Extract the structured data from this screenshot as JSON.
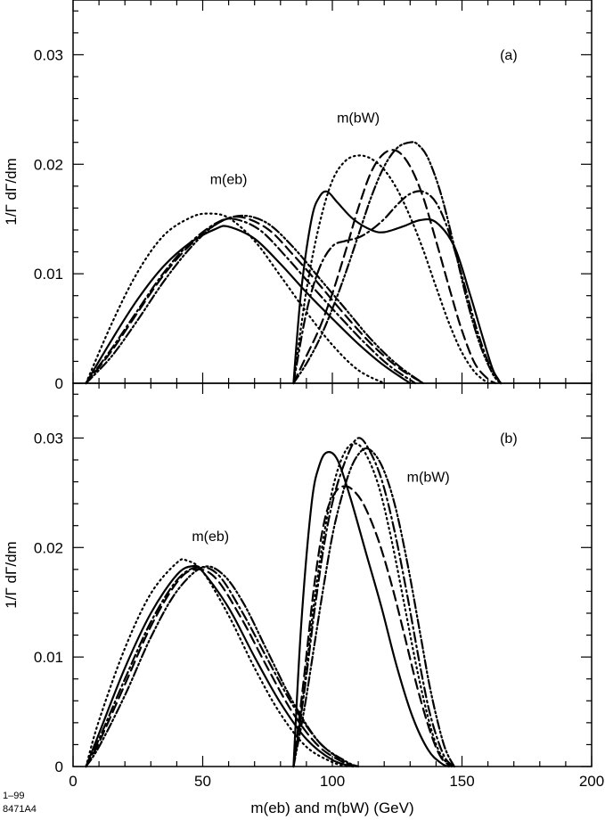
{
  "figure_code": [
    "1–99",
    "8471A4"
  ],
  "chart_data": [
    {
      "type": "line",
      "panel_label": "(a)",
      "ylabel": "1/Γ dΓ/dm",
      "xlabel": "m(eb) and m(bW)  (GeV)",
      "xlim": [
        0,
        200
      ],
      "ylim": [
        0,
        0.035
      ],
      "yticks": [
        0,
        0.01,
        0.02,
        0.03
      ],
      "ytick_labels": [
        "0",
        "0.01",
        "0.02",
        "0.03"
      ],
      "annotations": [
        {
          "text": "m(eb)",
          "x": 60,
          "y": 0.0182
        },
        {
          "text": "m(bW)",
          "x": 110,
          "y": 0.0238
        }
      ],
      "series": [
        {
          "name": "m(eb) solid",
          "style": "solid",
          "x": [
            5,
            15,
            25,
            35,
            45,
            55,
            60,
            70,
            80,
            90,
            100,
            110,
            120,
            130
          ],
          "values": [
            0,
            0.004,
            0.0077,
            0.0107,
            0.0128,
            0.0141,
            0.0143,
            0.0132,
            0.0109,
            0.0083,
            0.0059,
            0.0036,
            0.0016,
            0
          ]
        },
        {
          "name": "m(eb) dotted",
          "style": "dotted",
          "x": [
            5,
            15,
            25,
            35,
            45,
            52,
            60,
            70,
            80,
            90,
            100,
            110,
            120
          ],
          "values": [
            0,
            0.0055,
            0.0102,
            0.0135,
            0.0151,
            0.0155,
            0.0151,
            0.013,
            0.0098,
            0.0065,
            0.0035,
            0.0012,
            0
          ]
        },
        {
          "name": "m(eb) dashed",
          "style": "dashed",
          "x": [
            5,
            15,
            25,
            35,
            45,
            55,
            64,
            75,
            85,
            95,
            105,
            115,
            125,
            135
          ],
          "values": [
            0,
            0.003,
            0.0065,
            0.0099,
            0.0126,
            0.0145,
            0.0152,
            0.0141,
            0.0117,
            0.009,
            0.0062,
            0.0036,
            0.0015,
            0
          ]
        },
        {
          "name": "m(eb) dash-dot",
          "style": "dashdot",
          "x": [
            5,
            15,
            25,
            35,
            45,
            55,
            62,
            72,
            82,
            92,
            102,
            112,
            122,
            132
          ],
          "values": [
            0,
            0.0032,
            0.0067,
            0.0101,
            0.0128,
            0.0146,
            0.015,
            0.014,
            0.0116,
            0.0089,
            0.0063,
            0.0038,
            0.0016,
            0
          ]
        },
        {
          "name": "m(eb) dash-dot-dot",
          "style": "dashdotdot",
          "x": [
            5,
            15,
            25,
            35,
            45,
            55,
            65,
            75,
            85,
            95,
            105,
            115,
            125,
            135
          ],
          "values": [
            0,
            0.0025,
            0.0058,
            0.0093,
            0.0123,
            0.0145,
            0.0153,
            0.0146,
            0.0124,
            0.0096,
            0.0068,
            0.004,
            0.0017,
            0
          ]
        },
        {
          "name": "m(bW) solid",
          "style": "solid",
          "x": [
            85,
            88,
            92,
            95,
            98,
            102,
            108,
            115,
            120,
            127,
            134,
            140,
            147,
            153,
            158,
            162,
            165
          ],
          "values": [
            0,
            0.0085,
            0.015,
            0.017,
            0.0175,
            0.0165,
            0.015,
            0.014,
            0.0138,
            0.0143,
            0.0149,
            0.0147,
            0.0125,
            0.0082,
            0.0042,
            0.0012,
            0
          ]
        },
        {
          "name": "m(bW) dotted",
          "style": "dotted",
          "x": [
            85,
            90,
            95,
            100,
            105,
            110,
            115,
            120,
            125,
            130,
            135,
            140,
            145,
            150,
            155,
            160
          ],
          "values": [
            0,
            0.0085,
            0.0145,
            0.0185,
            0.0203,
            0.0208,
            0.0205,
            0.0195,
            0.0177,
            0.0152,
            0.0122,
            0.0088,
            0.0055,
            0.0028,
            0.001,
            0
          ]
        },
        {
          "name": "m(bW) dashed",
          "style": "dashed",
          "x": [
            85,
            90,
            95,
            100,
            105,
            110,
            115,
            120,
            125,
            130,
            135,
            140,
            145,
            150,
            155,
            160,
            163
          ],
          "values": [
            0,
            0.0025,
            0.005,
            0.0082,
            0.012,
            0.016,
            0.0193,
            0.021,
            0.0212,
            0.0198,
            0.017,
            0.013,
            0.0088,
            0.0048,
            0.0018,
            0.0004,
            0
          ]
        },
        {
          "name": "m(bW) dash-dot",
          "style": "dashdot",
          "x": [
            85,
            90,
            95,
            100,
            105,
            110,
            115,
            120,
            125,
            130,
            135,
            140,
            145,
            150,
            155,
            160,
            165
          ],
          "values": [
            0,
            0.0065,
            0.0105,
            0.0125,
            0.013,
            0.0133,
            0.014,
            0.015,
            0.0163,
            0.0173,
            0.0175,
            0.0165,
            0.0138,
            0.0098,
            0.0055,
            0.002,
            0
          ]
        },
        {
          "name": "m(bW) dash-dot-dot",
          "style": "dashdotdot",
          "x": [
            85,
            90,
            95,
            100,
            105,
            110,
            115,
            120,
            125,
            130,
            133,
            137,
            142,
            147,
            152,
            157,
            162,
            165
          ],
          "values": [
            0,
            0.0018,
            0.004,
            0.0068,
            0.01,
            0.0135,
            0.017,
            0.0198,
            0.0215,
            0.022,
            0.0218,
            0.0205,
            0.0172,
            0.0125,
            0.0075,
            0.0035,
            0.0008,
            0
          ]
        }
      ]
    },
    {
      "type": "line",
      "panel_label": "(b)",
      "ylabel": "1/Γ dΓ/dm",
      "xlabel": "m(eb) and m(bW)  (GeV)",
      "xlim": [
        0,
        200
      ],
      "ylim": [
        0,
        0.035
      ],
      "xticks": [
        0,
        50,
        100,
        150,
        200
      ],
      "xtick_labels": [
        "0",
        "50",
        "100",
        "150",
        "200"
      ],
      "yticks": [
        0,
        0.01,
        0.02,
        0.03
      ],
      "ytick_labels": [
        "0",
        "0.01",
        "0.02",
        "0.03"
      ],
      "annotations": [
        {
          "text": "m(eb)",
          "x": 53,
          "y": 0.0206
        },
        {
          "text": "m(bW)",
          "x": 137,
          "y": 0.026
        }
      ],
      "series": [
        {
          "name": "m(eb) solid",
          "style": "solid",
          "x": [
            5,
            10,
            20,
            30,
            40,
            46,
            50,
            60,
            70,
            80,
            90,
            100,
            108
          ],
          "values": [
            0,
            0.003,
            0.009,
            0.014,
            0.0175,
            0.0183,
            0.0178,
            0.0145,
            0.01,
            0.0058,
            0.0025,
            0.0006,
            0
          ]
        },
        {
          "name": "m(eb) dotted",
          "style": "dotted",
          "x": [
            5,
            10,
            20,
            30,
            40,
            44,
            50,
            60,
            70,
            80,
            90,
            100,
            106
          ],
          "values": [
            0,
            0.0042,
            0.0108,
            0.0158,
            0.0186,
            0.0188,
            0.0178,
            0.0138,
            0.009,
            0.0048,
            0.0018,
            0.0004,
            0
          ]
        },
        {
          "name": "m(eb) dashed",
          "style": "dashed",
          "x": [
            5,
            10,
            20,
            30,
            40,
            47,
            55,
            65,
            75,
            85,
            95,
            105,
            110
          ],
          "values": [
            0,
            0.0022,
            0.0075,
            0.0128,
            0.0168,
            0.018,
            0.0172,
            0.0135,
            0.009,
            0.0048,
            0.0018,
            0.0003,
            0
          ]
        },
        {
          "name": "m(eb) dash-dot",
          "style": "dashdot",
          "x": [
            5,
            10,
            20,
            30,
            40,
            48,
            56,
            65,
            75,
            85,
            95,
            105,
            110
          ],
          "values": [
            0,
            0.0025,
            0.008,
            0.0132,
            0.017,
            0.0182,
            0.0175,
            0.0142,
            0.0098,
            0.0055,
            0.0022,
            0.0004,
            0
          ]
        },
        {
          "name": "m(eb) dash-dot-dot",
          "style": "dashdotdot",
          "x": [
            5,
            10,
            20,
            30,
            40,
            50,
            58,
            66,
            75,
            85,
            95,
            105,
            110
          ],
          "values": [
            0,
            0.0018,
            0.0065,
            0.0118,
            0.016,
            0.0182,
            0.0175,
            0.0148,
            0.0105,
            0.0058,
            0.0022,
            0.0005,
            0
          ]
        },
        {
          "name": "m(bW) solid",
          "style": "solid",
          "x": [
            85,
            88,
            92,
            95,
            98,
            102,
            107,
            113,
            119,
            125,
            131,
            137,
            142,
            145
          ],
          "values": [
            0,
            0.013,
            0.024,
            0.0275,
            0.0287,
            0.028,
            0.0245,
            0.0195,
            0.0145,
            0.009,
            0.0045,
            0.0015,
            0.0003,
            0
          ]
        },
        {
          "name": "m(bW) dotted",
          "style": "dotted",
          "x": [
            85,
            89,
            93,
            97,
            101,
            105,
            109,
            113,
            118,
            123,
            128,
            133,
            138,
            142,
            146
          ],
          "values": [
            0,
            0.007,
            0.015,
            0.0215,
            0.0262,
            0.0288,
            0.0295,
            0.0285,
            0.0255,
            0.0205,
            0.0145,
            0.0085,
            0.0035,
            0.001,
            0
          ]
        },
        {
          "name": "m(bW) dashed",
          "style": "dashed",
          "x": [
            85,
            89,
            93,
            97,
            101,
            105,
            109,
            113,
            118,
            123,
            128,
            133,
            138,
            142,
            146
          ],
          "values": [
            0,
            0.008,
            0.0165,
            0.0225,
            0.025,
            0.0256,
            0.025,
            0.0235,
            0.0205,
            0.0165,
            0.0118,
            0.007,
            0.003,
            0.0008,
            0
          ]
        },
        {
          "name": "m(bW) dash-dot",
          "style": "dashdot",
          "x": [
            85,
            89,
            93,
            97,
            101,
            106,
            110,
            114,
            119,
            124,
            129,
            134,
            138,
            143,
            147
          ],
          "values": [
            0,
            0.0065,
            0.014,
            0.0205,
            0.025,
            0.0285,
            0.03,
            0.029,
            0.0262,
            0.0215,
            0.0155,
            0.009,
            0.0045,
            0.001,
            0
          ]
        },
        {
          "name": "m(bW) dash-dot-dot",
          "style": "dashdotdot",
          "x": [
            85,
            89,
            93,
            97,
            101,
            106,
            110,
            114,
            119,
            124,
            129,
            134,
            138,
            143,
            147
          ],
          "values": [
            0,
            0.005,
            0.011,
            0.017,
            0.0222,
            0.0265,
            0.0285,
            0.029,
            0.0275,
            0.024,
            0.0185,
            0.012,
            0.0068,
            0.002,
            0
          ]
        }
      ]
    }
  ]
}
